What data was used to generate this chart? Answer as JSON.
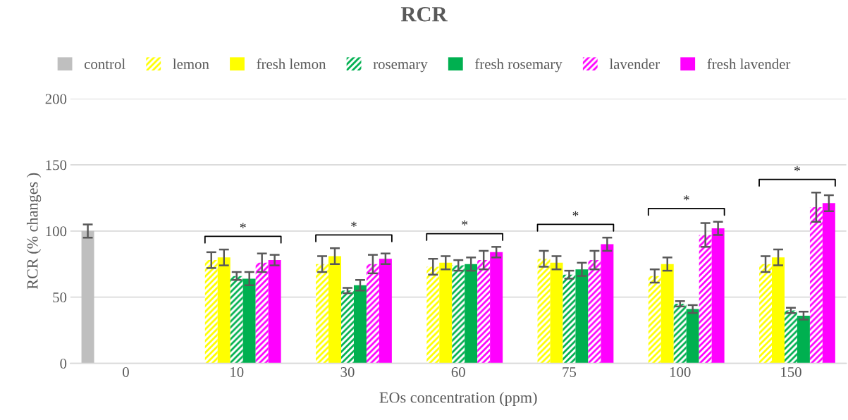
{
  "chart_data": {
    "type": "bar",
    "title": "RCR",
    "xlabel": "EOs concentration (ppm)",
    "ylabel": "RCR (% changes )",
    "categories": [
      "0",
      "10",
      "30",
      "60",
      "75",
      "100",
      "150"
    ],
    "series": [
      {
        "name": "control",
        "color": "#bfbfbf",
        "values": [
          100,
          null,
          null,
          null,
          null,
          null,
          null
        ],
        "errors": [
          5,
          null,
          null,
          null,
          null,
          null,
          null
        ]
      },
      {
        "name": "lemon",
        "color": "#ffff00",
        "values": [
          null,
          78,
          75,
          73,
          79,
          66,
          75
        ],
        "errors": [
          null,
          6,
          6,
          6,
          6,
          5,
          6
        ]
      },
      {
        "name": "fresh lemon",
        "color": "#ffff00",
        "values": [
          null,
          80,
          81,
          76,
          76,
          75,
          80
        ],
        "errors": [
          null,
          6,
          6,
          5,
          5,
          5,
          6
        ]
      },
      {
        "name": "rosemary",
        "color": "#00b050",
        "values": [
          null,
          66,
          55,
          74,
          67,
          45,
          40
        ],
        "errors": [
          null,
          3,
          2,
          4,
          3,
          2,
          2
        ]
      },
      {
        "name": "fresh rosemary",
        "color": "#00b050",
        "values": [
          null,
          64,
          59,
          75,
          71,
          41,
          36
        ],
        "errors": [
          null,
          5,
          4,
          5,
          5,
          3,
          3
        ]
      },
      {
        "name": "lavender",
        "color": "#ff00ff",
        "values": [
          null,
          76,
          75,
          78,
          78,
          97,
          118
        ],
        "errors": [
          null,
          7,
          7,
          7,
          7,
          9,
          11
        ]
      },
      {
        "name": "fresh lavender",
        "color": "#ff00ff",
        "values": [
          null,
          78,
          79,
          84,
          90,
          102,
          121
        ],
        "errors": [
          null,
          4,
          4,
          4,
          5,
          5,
          6
        ]
      }
    ],
    "annotations": [
      "*",
      "*",
      "*",
      "*",
      "*",
      "*"
    ],
    "ylim": [
      0,
      200
    ],
    "yticks": [
      0,
      50,
      100,
      150,
      200
    ],
    "grid": "y",
    "legend": "top"
  }
}
